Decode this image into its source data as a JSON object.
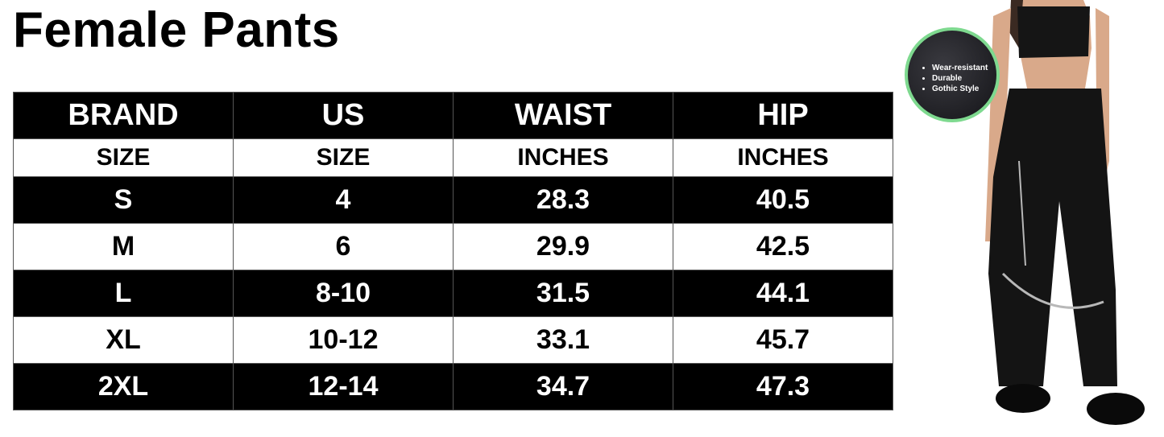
{
  "title": "Female Pants",
  "table": {
    "headers": [
      "BRAND",
      "US",
      "WAIST",
      "HIP"
    ],
    "subheaders": [
      "SIZE",
      "SIZE",
      "INCHES",
      "INCHES"
    ],
    "rows": [
      [
        "S",
        "4",
        "28.3",
        "40.5"
      ],
      [
        "M",
        "6",
        "29.9",
        "42.5"
      ],
      [
        "L",
        "8-10",
        "31.5",
        "44.1"
      ],
      [
        "XL",
        "10-12",
        "33.1",
        "45.7"
      ],
      [
        "2XL",
        "12-14",
        "34.7",
        "47.3"
      ]
    ]
  },
  "badge": {
    "features": [
      "Wear-resistant",
      "Durable",
      "Gothic Style"
    ],
    "ring_color": "#7ed98f"
  }
}
